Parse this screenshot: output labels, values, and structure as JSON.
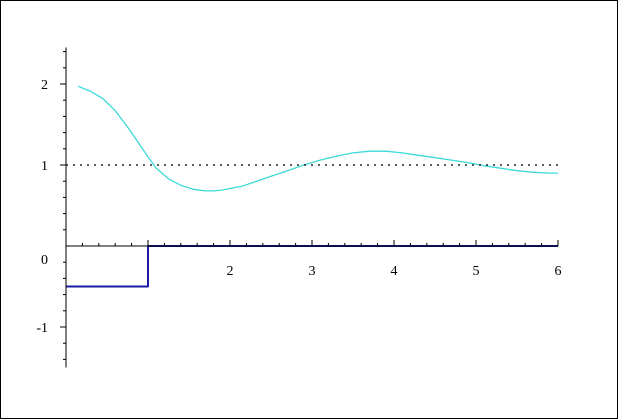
{
  "chart_data": {
    "type": "line",
    "title": "",
    "xlabel": "",
    "ylabel": "",
    "xlim": [
      0,
      6
    ],
    "ylim": [
      -1.5,
      2.45
    ],
    "x_ticks": [
      {
        "value": 2,
        "label": "2"
      },
      {
        "value": 3,
        "label": "3"
      },
      {
        "value": 4,
        "label": "4"
      },
      {
        "value": 5,
        "label": "5"
      },
      {
        "value": 6,
        "label": "6"
      }
    ],
    "y_ticks": [
      {
        "value": 2,
        "label": "2"
      },
      {
        "value": 1,
        "label": "1"
      },
      {
        "value": 0,
        "label": "0"
      },
      {
        "value": -1,
        "label": "-1"
      }
    ],
    "minor_ticks": true,
    "grid": false,
    "series": [
      {
        "name": "",
        "kind": "curve",
        "color": "#3fd8d8",
        "dash": "solid",
        "x": [
          0.15,
          0.3,
          0.45,
          0.6,
          0.75,
          0.9,
          1.0,
          1.1,
          1.25,
          1.4,
          1.55,
          1.7,
          1.8,
          1.9,
          2.0,
          2.15,
          2.3,
          2.5,
          2.7,
          2.9,
          3.1,
          3.3,
          3.5,
          3.7,
          3.9,
          4.1,
          4.3,
          4.5,
          4.7,
          4.9,
          5.1,
          5.3,
          5.5,
          5.7,
          5.9,
          6.0
        ],
        "y": [
          1.97,
          1.91,
          1.82,
          1.67,
          1.47,
          1.25,
          1.1,
          0.96,
          0.83,
          0.75,
          0.7,
          0.68,
          0.68,
          0.69,
          0.71,
          0.74,
          0.79,
          0.86,
          0.93,
          1.0,
          1.06,
          1.11,
          1.15,
          1.17,
          1.17,
          1.15,
          1.12,
          1.09,
          1.06,
          1.03,
          0.99,
          0.96,
          0.93,
          0.91,
          0.9,
          0.9
        ]
      },
      {
        "name": "",
        "kind": "reference",
        "color": "#000000",
        "dash": "dotted",
        "x": [
          0,
          6
        ],
        "y": [
          1,
          1
        ]
      },
      {
        "name": "",
        "kind": "step",
        "color": "#1a1aa6",
        "dash": "solid",
        "x": [
          0,
          1,
          1,
          6
        ],
        "y": [
          -0.5,
          -0.5,
          0,
          0
        ]
      }
    ]
  }
}
